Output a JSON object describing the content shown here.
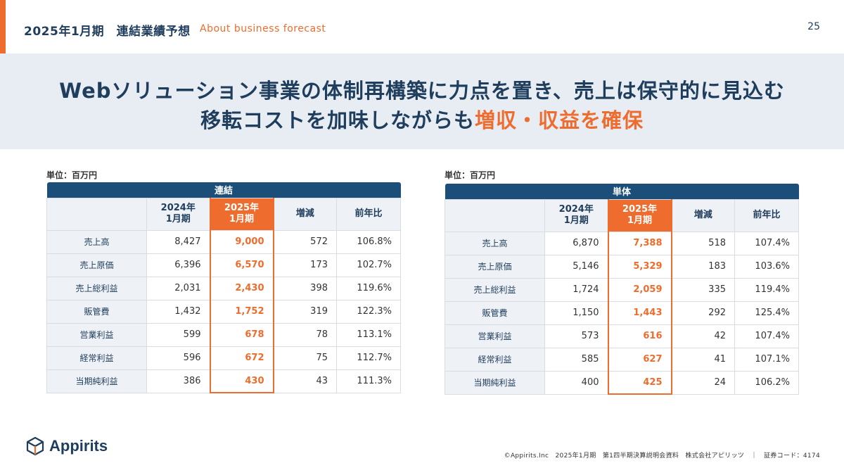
{
  "header": {
    "title": "2025年1月期　連結業績予想",
    "subtitle": "About business forecast",
    "page_number": "25"
  },
  "banner": {
    "line1": "Webソリューション事業の体制再構築に力点を置き、売上は保守的に見込む",
    "line2_main": "移転コストを加味しながらも",
    "line2_highlight": "増収・収益を確保"
  },
  "columns": {
    "prev": "2024年\n1月期",
    "curr": "2025年\n1月期",
    "diff": "増減",
    "ratio": "前年比"
  },
  "consolidated": {
    "unit": "単位：百万円",
    "caption": "連結",
    "rows": [
      {
        "label": "売上高",
        "prev": "8,427",
        "curr": "9,000",
        "diff": "572",
        "ratio": "106.8%"
      },
      {
        "label": "売上原価",
        "prev": "6,396",
        "curr": "6,570",
        "diff": "173",
        "ratio": "102.7%"
      },
      {
        "label": "売上総利益",
        "prev": "2,031",
        "curr": "2,430",
        "diff": "398",
        "ratio": "119.6%"
      },
      {
        "label": "販管費",
        "prev": "1,432",
        "curr": "1,752",
        "diff": "319",
        "ratio": "122.3%"
      },
      {
        "label": "営業利益",
        "prev": "599",
        "curr": "678",
        "diff": "78",
        "ratio": "113.1%"
      },
      {
        "label": "経常利益",
        "prev": "596",
        "curr": "672",
        "diff": "75",
        "ratio": "112.7%"
      },
      {
        "label": "当期純利益",
        "prev": "386",
        "curr": "430",
        "diff": "43",
        "ratio": "111.3%"
      }
    ]
  },
  "standalone": {
    "unit": "単位：百万円",
    "caption": "単体",
    "rows": [
      {
        "label": "売上高",
        "prev": "6,870",
        "curr": "7,388",
        "diff": "518",
        "ratio": "107.4%"
      },
      {
        "label": "売上原価",
        "prev": "5,146",
        "curr": "5,329",
        "diff": "183",
        "ratio": "103.6%"
      },
      {
        "label": "売上総利益",
        "prev": "1,724",
        "curr": "2,059",
        "diff": "335",
        "ratio": "119.4%"
      },
      {
        "label": "販管費",
        "prev": "1,150",
        "curr": "1,443",
        "diff": "292",
        "ratio": "125.4%"
      },
      {
        "label": "営業利益",
        "prev": "573",
        "curr": "616",
        "diff": "42",
        "ratio": "107.4%"
      },
      {
        "label": "経常利益",
        "prev": "585",
        "curr": "627",
        "diff": "41",
        "ratio": "107.1%"
      },
      {
        "label": "当期純利益",
        "prev": "400",
        "curr": "425",
        "diff": "24",
        "ratio": "106.2%"
      }
    ]
  },
  "logo": {
    "text": "Appirits",
    "icon": "box-logo-icon"
  },
  "footer": "©Appirits.Inc　2025年1月期　第1四半期決算説明会資料　株式会社アピリッツ　｜　証券コード：4174",
  "colors": {
    "accent": "#ee6c2d",
    "navy": "#1c4e7a",
    "text": "#1f3d5c",
    "banner_bg": "#e8edf3"
  }
}
